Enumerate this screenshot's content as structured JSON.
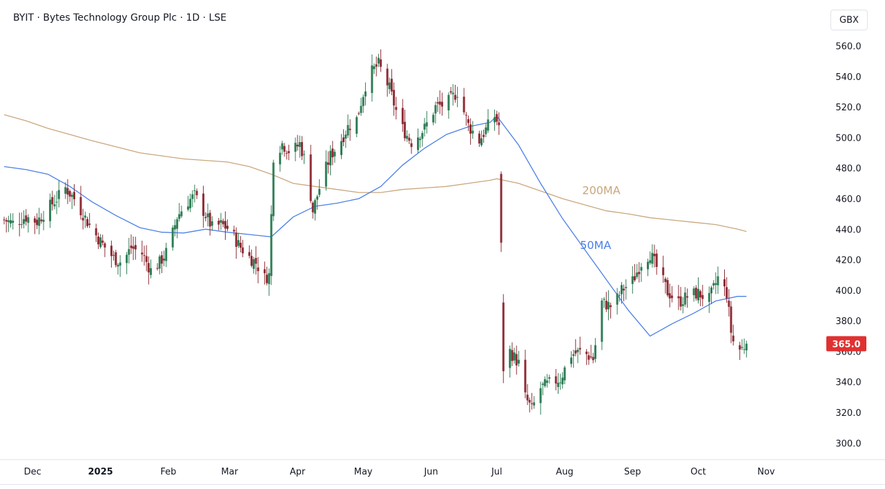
{
  "header": {
    "title": "BYIT · Bytes Technology Group Plc · 1D · LSE",
    "currency_label": "GBX"
  },
  "colors": {
    "up": "#2e7d55",
    "down": "#8e2b34",
    "ma50": "#4a7fe6",
    "ma200": "#c9a67c",
    "price_badge": "#e03131",
    "axis_text": "#131722"
  },
  "chart_data": {
    "type": "candlestick",
    "title": "BYIT · Bytes Technology Group Plc · 1D · LSE",
    "currency": "GBX",
    "x_range": [
      "2024-11-18",
      "2025-11-08"
    ],
    "ylim": [
      292,
      572
    ],
    "y_ticks": [
      "300.0",
      "320.0",
      "340.0",
      "360.0",
      "380.0",
      "400.0",
      "420.0",
      "440.0",
      "460.0",
      "480.0",
      "500.0",
      "520.0",
      "540.0",
      "560.0"
    ],
    "x_ticks": [
      {
        "date": "2024-12-01",
        "label": "Dec",
        "bold": false
      },
      {
        "date": "2025-01-01",
        "label": "2025",
        "bold": true
      },
      {
        "date": "2025-02-01",
        "label": "Feb",
        "bold": false
      },
      {
        "date": "2025-03-01",
        "label": "Mar",
        "bold": false
      },
      {
        "date": "2025-04-01",
        "label": "Apr",
        "bold": false
      },
      {
        "date": "2025-05-01",
        "label": "May",
        "bold": false
      },
      {
        "date": "2025-06-01",
        "label": "Jun",
        "bold": false
      },
      {
        "date": "2025-07-01",
        "label": "Jul",
        "bold": false
      },
      {
        "date": "2025-08-01",
        "label": "Aug",
        "bold": false
      },
      {
        "date": "2025-09-01",
        "label": "Sep",
        "bold": false
      },
      {
        "date": "2025-10-01",
        "label": "Oct",
        "bold": false
      },
      {
        "date": "2025-11-01",
        "label": "Nov",
        "bold": false
      }
    ],
    "last_price": "365.0",
    "grid": false,
    "price_path": [
      [
        "2024-11-18",
        446
      ],
      [
        "2024-11-22",
        444
      ],
      [
        "2024-11-28",
        448
      ],
      [
        "2024-12-03",
        445
      ],
      [
        "2024-12-07",
        452
      ],
      [
        "2024-12-12",
        460
      ],
      [
        "2024-12-16",
        467
      ],
      [
        "2024-12-20",
        460
      ],
      [
        "2024-12-24",
        450
      ],
      [
        "2024-12-28",
        440
      ],
      [
        "2025-01-02",
        430
      ],
      [
        "2025-01-07",
        421
      ],
      [
        "2025-01-11",
        418
      ],
      [
        "2025-01-15",
        428
      ],
      [
        "2025-01-20",
        424
      ],
      [
        "2025-01-24",
        413
      ],
      [
        "2025-01-28",
        418
      ],
      [
        "2025-02-01",
        427
      ],
      [
        "2025-02-05",
        448
      ],
      [
        "2025-02-09",
        457
      ],
      [
        "2025-02-13",
        462
      ],
      [
        "2025-02-17",
        452
      ],
      [
        "2025-02-21",
        441
      ],
      [
        "2025-02-25",
        443
      ],
      [
        "2025-03-01",
        440
      ],
      [
        "2025-03-05",
        430
      ],
      [
        "2025-03-09",
        423
      ],
      [
        "2025-03-13",
        418
      ],
      [
        "2025-03-17",
        408
      ],
      [
        "2025-03-19",
        410
      ],
      [
        "2025-03-21",
        488
      ],
      [
        "2025-03-25",
        496
      ],
      [
        "2025-03-29",
        490
      ],
      [
        "2025-04-02",
        496
      ],
      [
        "2025-04-05",
        482
      ],
      [
        "2025-04-08",
        452
      ],
      [
        "2025-04-12",
        472
      ],
      [
        "2025-04-16",
        488
      ],
      [
        "2025-04-20",
        496
      ],
      [
        "2025-04-24",
        507
      ],
      [
        "2025-04-28",
        512
      ],
      [
        "2025-05-03",
        540
      ],
      [
        "2025-05-08",
        548
      ],
      [
        "2025-05-13",
        532
      ],
      [
        "2025-05-18",
        508
      ],
      [
        "2025-05-23",
        497
      ],
      [
        "2025-05-29",
        506
      ],
      [
        "2025-06-03",
        520
      ],
      [
        "2025-06-08",
        522
      ],
      [
        "2025-06-13",
        530
      ],
      [
        "2025-06-18",
        508
      ],
      [
        "2025-06-23",
        498
      ],
      [
        "2025-06-28",
        510
      ],
      [
        "2025-06-30",
        514
      ],
      [
        "2025-07-02",
        508
      ],
      [
        "2025-07-04",
        349
      ],
      [
        "2025-07-07",
        360
      ],
      [
        "2025-07-11",
        352
      ],
      [
        "2025-07-14",
        330
      ],
      [
        "2025-07-17",
        322
      ],
      [
        "2025-07-21",
        336
      ],
      [
        "2025-07-25",
        339
      ],
      [
        "2025-07-30",
        342
      ],
      [
        "2025-08-04",
        358
      ],
      [
        "2025-08-09",
        360
      ],
      [
        "2025-08-14",
        355
      ],
      [
        "2025-08-18",
        392
      ],
      [
        "2025-08-23",
        389
      ],
      [
        "2025-08-27",
        400
      ],
      [
        "2025-09-01",
        406
      ],
      [
        "2025-09-05",
        418
      ],
      [
        "2025-09-09",
        424
      ],
      [
        "2025-09-13",
        412
      ],
      [
        "2025-09-17",
        399
      ],
      [
        "2025-09-22",
        392
      ],
      [
        "2025-09-27",
        397
      ],
      [
        "2025-10-01",
        398
      ],
      [
        "2025-10-06",
        394
      ],
      [
        "2025-10-10",
        408
      ],
      [
        "2025-10-14",
        398
      ],
      [
        "2025-10-16",
        373
      ],
      [
        "2025-10-18",
        360
      ],
      [
        "2025-10-21",
        362
      ],
      [
        "2025-10-23",
        365
      ]
    ],
    "series": [
      {
        "name": "50MA",
        "points": [
          [
            "2024-11-18",
            481
          ],
          [
            "2024-11-28",
            479
          ],
          [
            "2024-12-08",
            476
          ],
          [
            "2024-12-18",
            468
          ],
          [
            "2024-12-28",
            458
          ],
          [
            "2025-01-08",
            449
          ],
          [
            "2025-01-19",
            441
          ],
          [
            "2025-01-29",
            438
          ],
          [
            "2025-02-08",
            437.5
          ],
          [
            "2025-02-18",
            440
          ],
          [
            "2025-02-28",
            438
          ],
          [
            "2025-03-10",
            436.5
          ],
          [
            "2025-03-20",
            435
          ],
          [
            "2025-03-30",
            448
          ],
          [
            "2025-04-09",
            455
          ],
          [
            "2025-04-19",
            457
          ],
          [
            "2025-04-29",
            460
          ],
          [
            "2025-05-09",
            468
          ],
          [
            "2025-05-19",
            482
          ],
          [
            "2025-05-29",
            493
          ],
          [
            "2025-06-08",
            502
          ],
          [
            "2025-06-18",
            507
          ],
          [
            "2025-06-28",
            510
          ],
          [
            "2025-07-01",
            514
          ],
          [
            "2025-07-11",
            495
          ],
          [
            "2025-07-21",
            470
          ],
          [
            "2025-07-31",
            447
          ],
          [
            "2025-08-10",
            427
          ],
          [
            "2025-08-20",
            407
          ],
          [
            "2025-08-30",
            387
          ],
          [
            "2025-09-09",
            370
          ],
          [
            "2025-09-19",
            378
          ],
          [
            "2025-09-29",
            385
          ],
          [
            "2025-10-09",
            393
          ],
          [
            "2025-10-19",
            396
          ],
          [
            "2025-10-23",
            396
          ]
        ]
      },
      {
        "name": "200MA",
        "points": [
          [
            "2024-11-18",
            515
          ],
          [
            "2024-11-28",
            511
          ],
          [
            "2024-12-08",
            506
          ],
          [
            "2024-12-18",
            502
          ],
          [
            "2024-12-28",
            498
          ],
          [
            "2025-01-08",
            494
          ],
          [
            "2025-01-19",
            490
          ],
          [
            "2025-01-29",
            488
          ],
          [
            "2025-02-08",
            486
          ],
          [
            "2025-02-18",
            485
          ],
          [
            "2025-02-28",
            484
          ],
          [
            "2025-03-10",
            481
          ],
          [
            "2025-03-20",
            476
          ],
          [
            "2025-03-30",
            470
          ],
          [
            "2025-04-09",
            468
          ],
          [
            "2025-04-19",
            466
          ],
          [
            "2025-04-29",
            464
          ],
          [
            "2025-05-09",
            464
          ],
          [
            "2025-05-19",
            466
          ],
          [
            "2025-05-29",
            467
          ],
          [
            "2025-06-08",
            468
          ],
          [
            "2025-06-18",
            470
          ],
          [
            "2025-06-28",
            472
          ],
          [
            "2025-07-01",
            473
          ],
          [
            "2025-07-11",
            470
          ],
          [
            "2025-07-21",
            465
          ],
          [
            "2025-07-31",
            460
          ],
          [
            "2025-08-10",
            456
          ],
          [
            "2025-08-20",
            452
          ],
          [
            "2025-08-30",
            450
          ],
          [
            "2025-09-09",
            447.5
          ],
          [
            "2025-09-19",
            446
          ],
          [
            "2025-09-29",
            444.5
          ],
          [
            "2025-10-09",
            443
          ],
          [
            "2025-10-19",
            440
          ],
          [
            "2025-10-23",
            438.5
          ]
        ]
      }
    ],
    "annotations": [
      {
        "text": "200MA",
        "series": "200MA",
        "date": "2025-08-09",
        "value": 463
      },
      {
        "text": "50MA",
        "series": "50MA",
        "date": "2025-08-08",
        "value": 427
      }
    ]
  }
}
